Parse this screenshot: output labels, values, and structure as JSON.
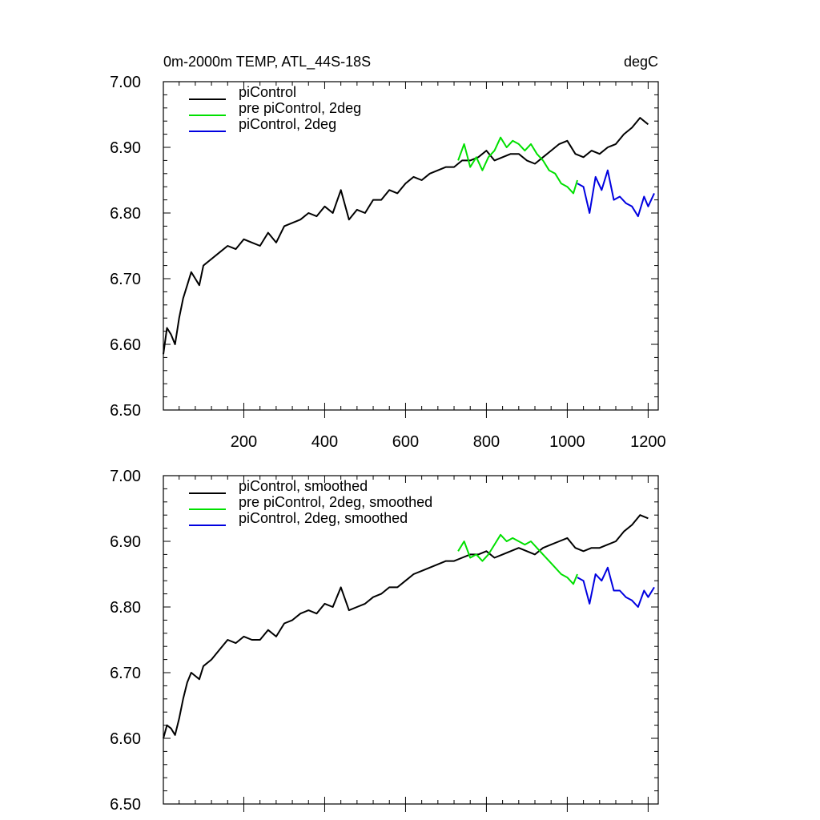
{
  "chart_data": [
    {
      "type": "line",
      "title_left": "0m-2000m TEMP, ATL_44S-18S",
      "title_right": "degC",
      "xlim": [
        1,
        1225
      ],
      "ylim": [
        6.5,
        7.0
      ],
      "xticks": [
        200,
        400,
        600,
        800,
        1000,
        1200
      ],
      "xtick_labels": [
        "200",
        "400",
        "600",
        "800",
        "1000",
        "1200"
      ],
      "yticks": [
        6.5,
        6.6,
        6.7,
        6.8,
        6.9,
        7.0
      ],
      "ytick_labels": [
        "6.50",
        "6.60",
        "6.70",
        "6.80",
        "6.90",
        "7.00"
      ],
      "legend": "top-left",
      "series": [
        {
          "name": "piControl",
          "color": "#000000",
          "x": [
            1,
            10,
            20,
            30,
            40,
            50,
            60,
            70,
            80,
            90,
            100,
            120,
            140,
            160,
            180,
            200,
            220,
            240,
            260,
            280,
            300,
            320,
            340,
            360,
            380,
            400,
            420,
            440,
            460,
            480,
            500,
            520,
            540,
            560,
            580,
            600,
            620,
            640,
            660,
            680,
            700,
            720,
            740,
            760,
            780,
            800,
            820,
            840,
            860,
            880,
            900,
            920,
            940,
            960,
            980,
            1000,
            1020,
            1040,
            1060,
            1080,
            1100,
            1120,
            1140,
            1160,
            1180,
            1200
          ],
          "y": [
            6.585,
            6.625,
            6.615,
            6.6,
            6.64,
            6.67,
            6.69,
            6.71,
            6.7,
            6.69,
            6.72,
            6.73,
            6.74,
            6.75,
            6.745,
            6.76,
            6.755,
            6.75,
            6.77,
            6.755,
            6.78,
            6.785,
            6.79,
            6.8,
            6.795,
            6.81,
            6.8,
            6.835,
            6.79,
            6.805,
            6.8,
            6.82,
            6.82,
            6.835,
            6.83,
            6.845,
            6.855,
            6.85,
            6.86,
            6.865,
            6.87,
            6.87,
            6.88,
            6.88,
            6.885,
            6.895,
            6.88,
            6.885,
            6.89,
            6.89,
            6.88,
            6.875,
            6.885,
            6.895,
            6.905,
            6.91,
            6.89,
            6.885,
            6.895,
            6.89,
            6.9,
            6.905,
            6.92,
            6.93,
            6.945,
            6.935
          ]
        },
        {
          "name": "pre piControl, 2deg",
          "color": "#00e000",
          "x": [
            730,
            745,
            760,
            775,
            790,
            805,
            820,
            835,
            850,
            865,
            880,
            895,
            910,
            925,
            940,
            955,
            970,
            985,
            1000,
            1015,
            1025
          ],
          "y": [
            6.88,
            6.905,
            6.87,
            6.885,
            6.865,
            6.885,
            6.895,
            6.915,
            6.9,
            6.91,
            6.905,
            6.895,
            6.905,
            6.89,
            6.88,
            6.865,
            6.86,
            6.845,
            6.84,
            6.83,
            6.85
          ]
        },
        {
          "name": "piControl, 2deg",
          "color": "#0000e0",
          "x": [
            1025,
            1040,
            1055,
            1070,
            1085,
            1100,
            1115,
            1130,
            1145,
            1160,
            1175,
            1190,
            1200,
            1215
          ],
          "y": [
            6.845,
            6.84,
            6.8,
            6.855,
            6.835,
            6.865,
            6.82,
            6.825,
            6.815,
            6.81,
            6.795,
            6.825,
            6.81,
            6.83
          ]
        }
      ]
    },
    {
      "type": "line",
      "xlim": [
        1,
        1225
      ],
      "ylim": [
        6.5,
        7.0
      ],
      "yticks": [
        6.5,
        6.6,
        6.7,
        6.8,
        6.9,
        7.0
      ],
      "ytick_labels": [
        "6.50",
        "6.60",
        "6.70",
        "6.80",
        "6.90",
        "7.00"
      ],
      "legend": "top-left",
      "series": [
        {
          "name": "piControl, smoothed",
          "color": "#000000",
          "x": [
            1,
            10,
            20,
            30,
            40,
            50,
            60,
            70,
            80,
            90,
            100,
            120,
            140,
            160,
            180,
            200,
            220,
            240,
            260,
            280,
            300,
            320,
            340,
            360,
            380,
            400,
            420,
            440,
            460,
            480,
            500,
            520,
            540,
            560,
            580,
            600,
            620,
            640,
            660,
            680,
            700,
            720,
            740,
            760,
            780,
            800,
            820,
            840,
            860,
            880,
            900,
            920,
            940,
            960,
            980,
            1000,
            1020,
            1040,
            1060,
            1080,
            1100,
            1120,
            1140,
            1160,
            1180,
            1200
          ],
          "y": [
            6.6,
            6.62,
            6.615,
            6.605,
            6.63,
            6.66,
            6.685,
            6.7,
            6.695,
            6.69,
            6.71,
            6.72,
            6.735,
            6.75,
            6.745,
            6.755,
            6.75,
            6.75,
            6.765,
            6.755,
            6.775,
            6.78,
            6.79,
            6.795,
            6.79,
            6.805,
            6.8,
            6.83,
            6.795,
            6.8,
            6.805,
            6.815,
            6.82,
            6.83,
            6.83,
            6.84,
            6.85,
            6.855,
            6.86,
            6.865,
            6.87,
            6.87,
            6.875,
            6.88,
            6.88,
            6.885,
            6.875,
            6.88,
            6.885,
            6.89,
            6.885,
            6.88,
            6.89,
            6.895,
            6.9,
            6.905,
            6.89,
            6.885,
            6.89,
            6.89,
            6.895,
            6.9,
            6.915,
            6.925,
            6.94,
            6.935
          ]
        },
        {
          "name": "pre piControl, 2deg, smoothed",
          "color": "#00e000",
          "x": [
            730,
            745,
            760,
            775,
            790,
            805,
            820,
            835,
            850,
            865,
            880,
            895,
            910,
            925,
            940,
            955,
            970,
            985,
            1000,
            1015,
            1025
          ],
          "y": [
            6.885,
            6.9,
            6.875,
            6.88,
            6.87,
            6.88,
            6.895,
            6.91,
            6.9,
            6.905,
            6.9,
            6.895,
            6.9,
            6.89,
            6.88,
            6.87,
            6.86,
            6.85,
            6.845,
            6.835,
            6.85
          ]
        },
        {
          "name": "piControl, 2deg, smoothed",
          "color": "#0000e0",
          "x": [
            1025,
            1040,
            1055,
            1070,
            1085,
            1100,
            1115,
            1130,
            1145,
            1160,
            1175,
            1190,
            1200,
            1215
          ],
          "y": [
            6.845,
            6.84,
            6.805,
            6.85,
            6.84,
            6.86,
            6.825,
            6.825,
            6.815,
            6.81,
            6.8,
            6.825,
            6.815,
            6.83
          ]
        }
      ]
    }
  ]
}
